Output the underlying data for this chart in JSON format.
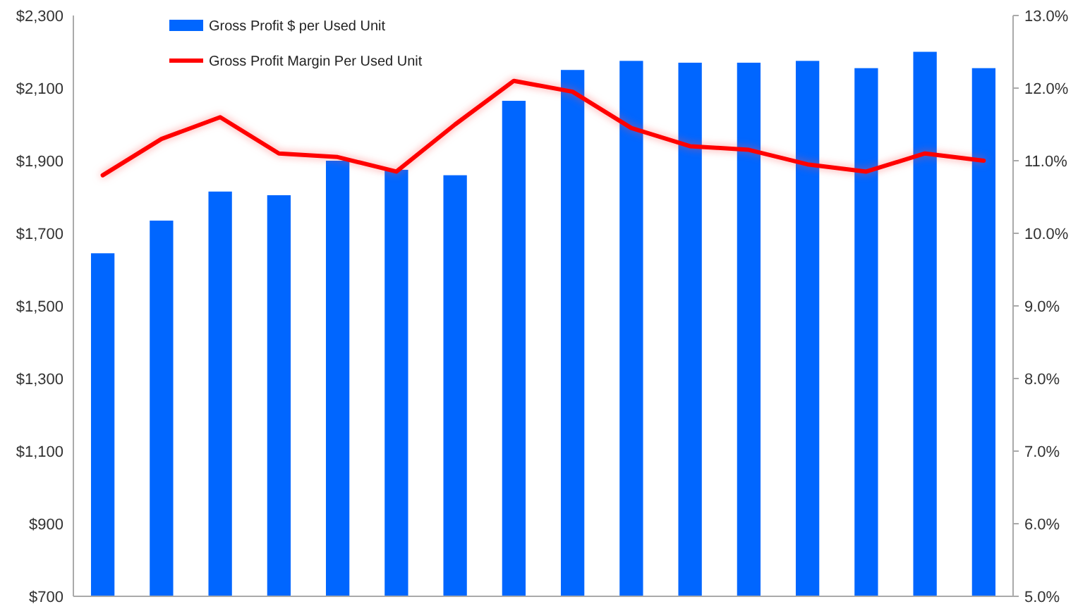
{
  "chart_data": {
    "type": "bar",
    "categories": [
      null,
      null,
      null,
      null,
      null,
      null,
      null,
      null,
      null,
      null,
      null,
      null,
      null,
      null,
      null,
      null
    ],
    "series": [
      {
        "name": "Gross Profit $ per Used Unit",
        "color": "#0066ff",
        "values": [
          1645,
          1735,
          1815,
          1805,
          1900,
          1875,
          1860,
          2065,
          2150,
          2175,
          2170,
          2170,
          2175,
          2155,
          2200,
          2155
        ]
      },
      {
        "name": "Gross Profit Margin Per Used Unit",
        "type": "line",
        "axis": "y2",
        "color": "#ff0000",
        "values": [
          10.8,
          11.3,
          11.6,
          11.1,
          11.05,
          10.85,
          11.5,
          12.1,
          11.95,
          11.45,
          11.2,
          11.15,
          10.95,
          10.85,
          11.1,
          11.0
        ]
      }
    ],
    "ylim": [
      700,
      2300
    ],
    "yticks": [
      {
        "value": 700,
        "label": "$700"
      },
      {
        "value": 900,
        "label": "$900"
      },
      {
        "value": 1100,
        "label": "$1,100"
      },
      {
        "value": 1300,
        "label": "$1,300"
      },
      {
        "value": 1500,
        "label": "$1,500"
      },
      {
        "value": 1700,
        "label": "$1,700"
      },
      {
        "value": 1900,
        "label": "$1,900"
      },
      {
        "value": 2100,
        "label": "$2,100"
      },
      {
        "value": 2300,
        "label": "$2,300"
      }
    ],
    "y2lim": [
      5,
      13
    ],
    "y2ticks": [
      {
        "value": 5,
        "label": "5.0%"
      },
      {
        "value": 6,
        "label": "6.0%"
      },
      {
        "value": 7,
        "label": "7.0%"
      },
      {
        "value": 8,
        "label": "8.0%"
      },
      {
        "value": 9,
        "label": "9.0%"
      },
      {
        "value": 10,
        "label": "10.0%"
      },
      {
        "value": 11,
        "label": "11.0%"
      },
      {
        "value": 12,
        "label": "12.0%"
      },
      {
        "value": 13,
        "label": "13.0%"
      }
    ],
    "legend": "top left",
    "grid": false,
    "marker": "none"
  }
}
